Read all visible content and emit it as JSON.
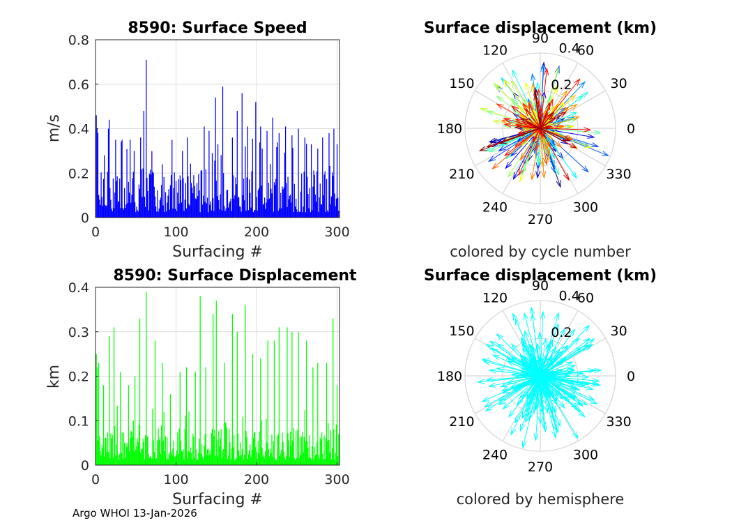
{
  "footer": "Argo WHOI 13-Jan-2026",
  "chart_data": [
    {
      "type": "bar",
      "title": "8590: Surface Speed",
      "xlabel": "Surfacing #",
      "ylabel": "m/s",
      "xlim": [
        0,
        303
      ],
      "ylim": [
        0,
        0.8
      ],
      "xticks": [
        "0",
        "100",
        "200",
        "300"
      ],
      "yticks": [
        "0",
        "0.2",
        "0.4",
        "0.6",
        "0.8"
      ],
      "color": "#0000ff",
      "peaks": [
        [
          1,
          0.46
        ],
        [
          2,
          0.4
        ],
        [
          3,
          0.38
        ],
        [
          11,
          0.28
        ],
        [
          16,
          0.4
        ],
        [
          17,
          0.44
        ],
        [
          25,
          0.35
        ],
        [
          33,
          0.35
        ],
        [
          43,
          0.35
        ],
        [
          48,
          0.3
        ],
        [
          56,
          0.36
        ],
        [
          60,
          0.48
        ],
        [
          63,
          0.71
        ],
        [
          72,
          0.2
        ],
        [
          83,
          0.24
        ],
        [
          95,
          0.35
        ],
        [
          108,
          0.3
        ],
        [
          114,
          0.36
        ],
        [
          135,
          0.41
        ],
        [
          141,
          0.39
        ],
        [
          145,
          0.29
        ],
        [
          149,
          0.54
        ],
        [
          158,
          0.59
        ],
        [
          170,
          0.36
        ],
        [
          176,
          0.48
        ],
        [
          182,
          0.56
        ],
        [
          186,
          0.32
        ],
        [
          189,
          0.41
        ],
        [
          199,
          0.52
        ],
        [
          205,
          0.41
        ],
        [
          213,
          0.39
        ],
        [
          220,
          0.45
        ],
        [
          228,
          0.38
        ],
        [
          236,
          0.41
        ],
        [
          244,
          0.37
        ],
        [
          252,
          0.4
        ],
        [
          260,
          0.36
        ],
        [
          268,
          0.33
        ],
        [
          276,
          0.31
        ],
        [
          282,
          0.36
        ],
        [
          290,
          0.38
        ],
        [
          296,
          0.4
        ],
        [
          300,
          0.33
        ]
      ]
    },
    {
      "type": "bar",
      "title": "8590: Surface Displacement",
      "xlabel": "Surfacing #",
      "ylabel": "km",
      "xlim": [
        0,
        303
      ],
      "ylim": [
        0,
        0.4
      ],
      "xticks": [
        "0",
        "100",
        "200",
        "300"
      ],
      "yticks": [
        "0",
        "0.1",
        "0.2",
        "0.3",
        "0.4"
      ],
      "color": "#00ff00",
      "peaks": [
        [
          1,
          0.25
        ],
        [
          2,
          0.22
        ],
        [
          4,
          0.23
        ],
        [
          10,
          0.18
        ],
        [
          17,
          0.29
        ],
        [
          23,
          0.31
        ],
        [
          31,
          0.21
        ],
        [
          41,
          0.18
        ],
        [
          49,
          0.2
        ],
        [
          55,
          0.33
        ],
        [
          63,
          0.39
        ],
        [
          74,
          0.28
        ],
        [
          83,
          0.23
        ],
        [
          93,
          0.16
        ],
        [
          105,
          0.21
        ],
        [
          113,
          0.22
        ],
        [
          124,
          0.21
        ],
        [
          130,
          0.38
        ],
        [
          137,
          0.22
        ],
        [
          146,
          0.34
        ],
        [
          150,
          0.37
        ],
        [
          160,
          0.23
        ],
        [
          170,
          0.34
        ],
        [
          176,
          0.3
        ],
        [
          186,
          0.36
        ],
        [
          195,
          0.25
        ],
        [
          205,
          0.24
        ],
        [
          214,
          0.28
        ],
        [
          222,
          0.28
        ],
        [
          228,
          0.31
        ],
        [
          238,
          0.31
        ],
        [
          244,
          0.3
        ],
        [
          252,
          0.3
        ],
        [
          262,
          0.28
        ],
        [
          270,
          0.22
        ],
        [
          276,
          0.23
        ],
        [
          287,
          0.23
        ],
        [
          295,
          0.33
        ],
        [
          300,
          0.18
        ]
      ]
    },
    {
      "type": "polar-compass",
      "title": "Surface displacement (km)",
      "caption": "colored by cycle number",
      "rlim": [
        0,
        0.4
      ],
      "rticks": [
        "0.2",
        "0.4"
      ],
      "angle_labels": [
        "0",
        "30",
        "60",
        "90",
        "120",
        "150",
        "180",
        "210",
        "240",
        "270",
        "300",
        "330"
      ],
      "color_scale": "jet (by cycle number)",
      "n_arrows": 300
    },
    {
      "type": "polar-compass",
      "title": "Surface displacement (km)",
      "caption": "colored by hemisphere",
      "rlim": [
        0,
        0.4
      ],
      "rticks": [
        "0.2",
        "0.4"
      ],
      "angle_labels": [
        "0",
        "30",
        "60",
        "90",
        "120",
        "150",
        "180",
        "210",
        "240",
        "270",
        "300",
        "330"
      ],
      "color": "#00ffff",
      "n_arrows": 300
    }
  ]
}
